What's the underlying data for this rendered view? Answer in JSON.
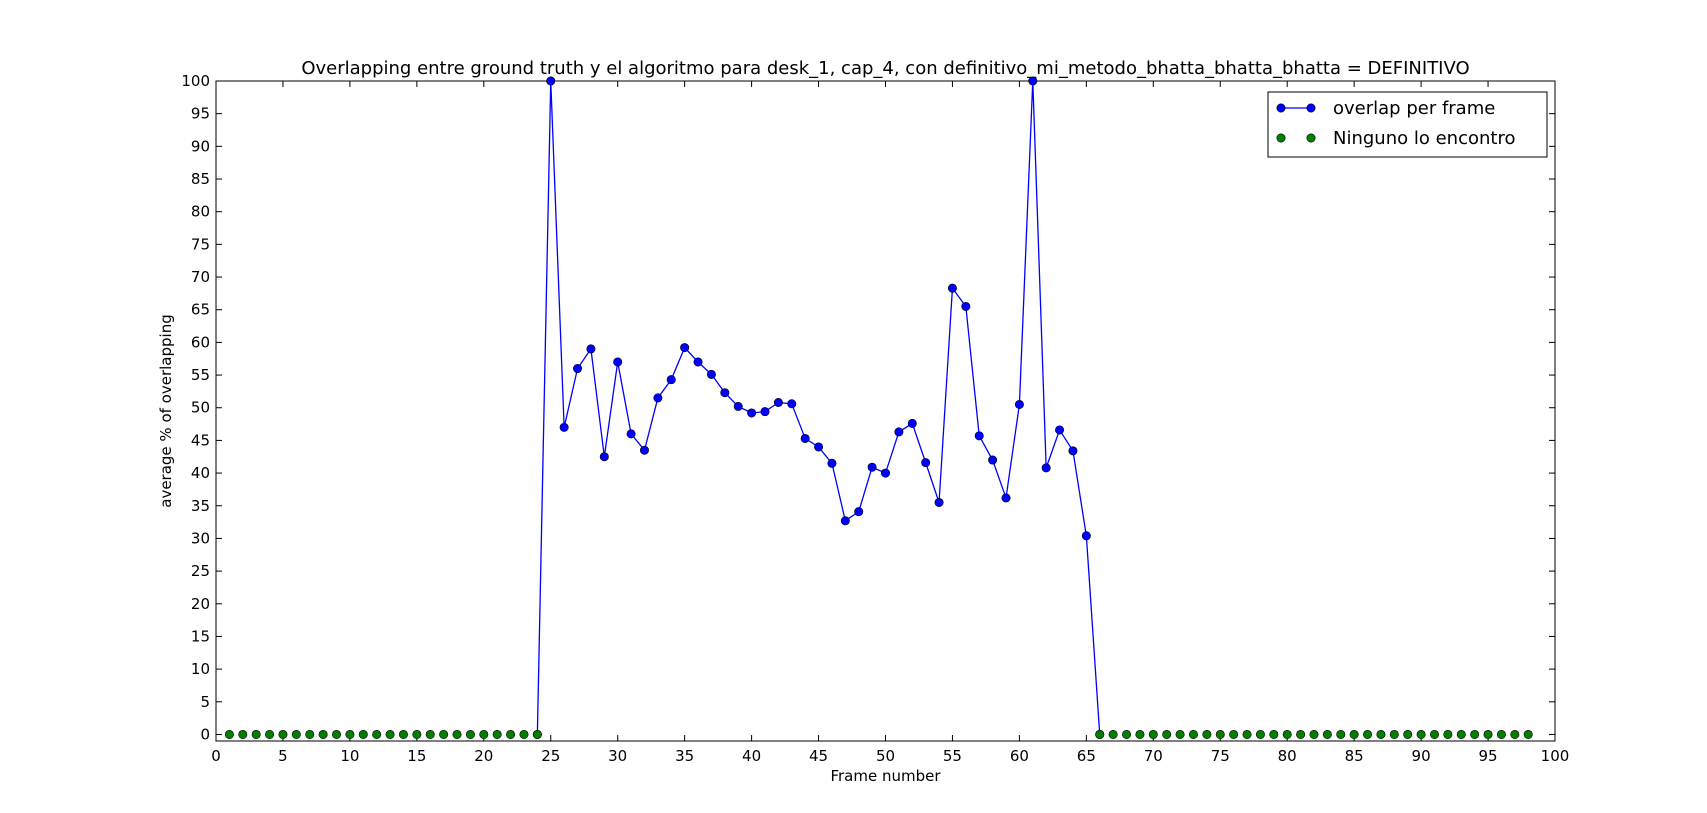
{
  "chart_data": {
    "type": "line",
    "title": "Overlapping entre ground truth y el algoritmo para desk_1, cap_4, con definitivo_mi_metodo_bhatta_bhatta_bhatta = DEFINITIVO",
    "xlabel": "Frame number",
    "ylabel": "average % of overlapping",
    "xlim": [
      0,
      100
    ],
    "ylim": [
      -1,
      100
    ],
    "xticks": [
      0,
      5,
      10,
      15,
      20,
      25,
      30,
      35,
      40,
      45,
      50,
      55,
      60,
      65,
      70,
      75,
      80,
      85,
      90,
      95,
      100
    ],
    "yticks": [
      0,
      5,
      10,
      15,
      20,
      25,
      30,
      35,
      40,
      45,
      50,
      55,
      60,
      65,
      70,
      75,
      80,
      85,
      90,
      95,
      100
    ],
    "grid": false,
    "legend_position": "top-right",
    "series": [
      {
        "name": "overlap per frame",
        "color": "#0000ff",
        "style": "line-with-markers",
        "x": [
          24,
          25,
          26,
          27,
          28,
          29,
          30,
          31,
          32,
          33,
          34,
          35,
          36,
          37,
          38,
          39,
          40,
          41,
          42,
          43,
          44,
          45,
          46,
          47,
          48,
          49,
          50,
          51,
          52,
          53,
          54,
          55,
          56,
          57,
          58,
          59,
          60,
          61,
          62,
          63,
          64,
          65,
          66
        ],
        "y": [
          0,
          100,
          47,
          56,
          59,
          42.5,
          57,
          46,
          43.5,
          51.5,
          54.3,
          59.2,
          57,
          55.1,
          52.3,
          50.2,
          49.2,
          49.4,
          50.8,
          50.6,
          45.3,
          44,
          41.5,
          32.7,
          34.1,
          40.9,
          40,
          46.3,
          47.6,
          41.6,
          35.5,
          68.3,
          65.5,
          45.7,
          42,
          36.2,
          50.5,
          100,
          40.8,
          46.6,
          43.4,
          30.4,
          0
        ]
      },
      {
        "name": "Ninguno lo encontro",
        "color": "#007f00",
        "style": "markers",
        "x": [
          1,
          2,
          3,
          4,
          5,
          6,
          7,
          8,
          9,
          10,
          11,
          12,
          13,
          14,
          15,
          16,
          17,
          18,
          19,
          20,
          21,
          22,
          23,
          24,
          66,
          67,
          68,
          69,
          70,
          71,
          72,
          73,
          74,
          75,
          76,
          77,
          78,
          79,
          80,
          81,
          82,
          83,
          84,
          85,
          86,
          87,
          88,
          89,
          90,
          91,
          92,
          93,
          94,
          95,
          96,
          97,
          98
        ],
        "y": [
          0,
          0,
          0,
          0,
          0,
          0,
          0,
          0,
          0,
          0,
          0,
          0,
          0,
          0,
          0,
          0,
          0,
          0,
          0,
          0,
          0,
          0,
          0,
          0,
          0,
          0,
          0,
          0,
          0,
          0,
          0,
          0,
          0,
          0,
          0,
          0,
          0,
          0,
          0,
          0,
          0,
          0,
          0,
          0,
          0,
          0,
          0,
          0,
          0,
          0,
          0,
          0,
          0,
          0,
          0,
          0,
          0
        ]
      }
    ]
  }
}
